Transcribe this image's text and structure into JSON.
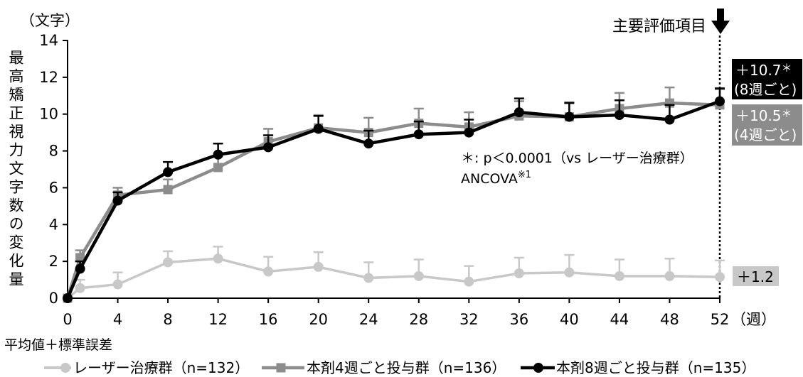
{
  "chart_data": {
    "type": "line",
    "y_unit": "（文字）",
    "ylabel": "最高矯正視力文字数の変化量",
    "x_unit": "（週）",
    "xlim": [
      0,
      52
    ],
    "ylim": [
      0,
      14
    ],
    "xticks": [
      0,
      4,
      8,
      12,
      16,
      20,
      24,
      28,
      32,
      36,
      40,
      44,
      48,
      52
    ],
    "yticks": [
      0,
      2,
      4,
      6,
      8,
      10,
      12,
      14
    ],
    "grid": false,
    "legend_position": "bottom",
    "x": [
      0,
      1,
      4,
      8,
      12,
      16,
      20,
      24,
      28,
      32,
      36,
      40,
      44,
      48,
      52
    ],
    "series": [
      {
        "name": "レーザー治療群（n=132）",
        "color": "#c8c8c8",
        "marker": "circle",
        "values": [
          0,
          0.55,
          0.75,
          1.95,
          2.15,
          1.45,
          1.7,
          1.1,
          1.2,
          0.9,
          1.35,
          1.4,
          1.2,
          1.2,
          1.15
        ],
        "se": [
          0,
          0.45,
          0.65,
          0.6,
          0.65,
          0.8,
          0.8,
          0.85,
          0.9,
          0.85,
          0.85,
          0.95,
          0.9,
          0.95,
          0.9
        ]
      },
      {
        "name": "本剤4週ごと投与群（n=136）",
        "color": "#8c8c8c",
        "marker": "square",
        "values": [
          0,
          2.2,
          5.6,
          5.9,
          7.1,
          8.5,
          9.25,
          9.0,
          9.5,
          9.3,
          9.9,
          9.85,
          10.3,
          10.6,
          10.5
        ],
        "se": [
          0,
          0.4,
          0.4,
          0.55,
          0.6,
          0.7,
          0.7,
          0.8,
          0.8,
          0.8,
          0.8,
          0.8,
          0.85,
          0.85,
          0.85
        ]
      },
      {
        "name": "本剤8週ごと投与群（n=135）",
        "color": "#000000",
        "marker": "circle",
        "values": [
          0,
          1.6,
          5.3,
          6.85,
          7.8,
          8.2,
          9.2,
          8.4,
          8.9,
          9.0,
          10.1,
          9.85,
          9.95,
          9.7,
          10.7
        ],
        "se": [
          0,
          0.4,
          0.45,
          0.55,
          0.6,
          0.65,
          0.7,
          0.7,
          0.7,
          0.7,
          0.75,
          0.75,
          0.8,
          0.8,
          0.7
        ]
      }
    ],
    "primary_endpoint": {
      "label": "主要評価項目",
      "x": 52
    },
    "annotation": {
      "significance": "＊: p＜0.0001（vs レーザー治療群）",
      "method": "ANCOVA",
      "method_ref": "※1"
    },
    "end_labels": [
      {
        "value": "＋10.7",
        "mark": "＊",
        "group": "(8週ごと)",
        "bg": "#000000",
        "fg": "#ffffff"
      },
      {
        "value": "＋10.5",
        "mark": "＊",
        "group": "(4週ごと)",
        "bg": "#8c8c8c",
        "fg": "#ffffff"
      },
      {
        "value": "＋1.2",
        "bg": "#c8c8c8",
        "fg": "#000000"
      }
    ],
    "footnote": "平均値＋標準誤差"
  }
}
